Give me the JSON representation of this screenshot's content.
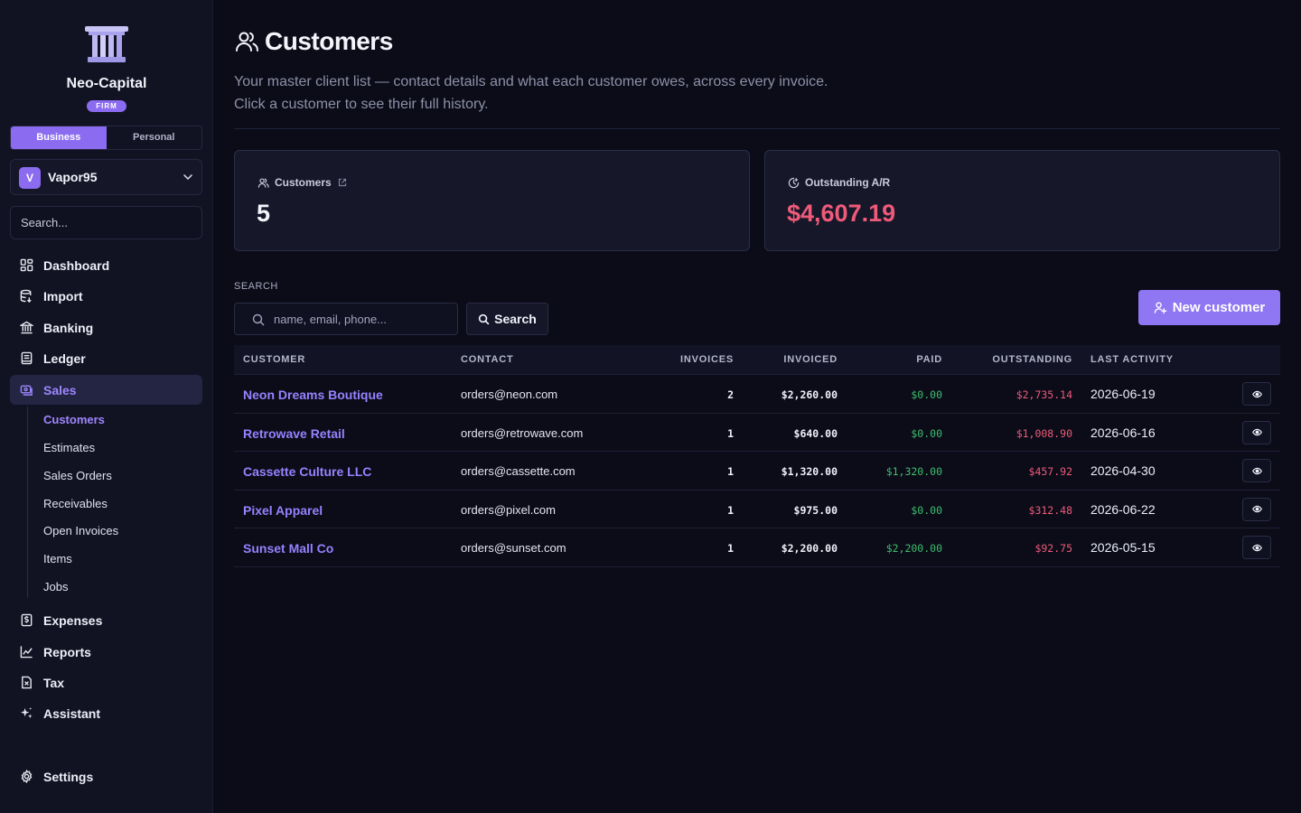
{
  "sidebar": {
    "org_name": "Neo-Capital",
    "org_badge": "FIRM",
    "modes": [
      "Business",
      "Personal"
    ],
    "active_mode": "Business",
    "workspace": {
      "initial": "V",
      "name": "Vapor95"
    },
    "search_placeholder": "Search...",
    "nav": [
      {
        "label": "Dashboard",
        "icon": "dashboard-icon"
      },
      {
        "label": "Import",
        "icon": "database-import-icon"
      },
      {
        "label": "Banking",
        "icon": "bank-icon"
      },
      {
        "label": "Ledger",
        "icon": "ledger-book-icon"
      },
      {
        "label": "Sales",
        "icon": "sales-icon",
        "active": true
      }
    ],
    "sales_sub": [
      "Customers",
      "Estimates",
      "Sales Orders",
      "Receivables",
      "Open Invoices",
      "Items",
      "Jobs"
    ],
    "nav_bottom": [
      {
        "label": "Expenses",
        "icon": "receipt-dollar-icon"
      },
      {
        "label": "Reports",
        "icon": "chart-icon"
      },
      {
        "label": "Tax",
        "icon": "tax-document-icon"
      },
      {
        "label": "Assistant",
        "icon": "sparkles-icon"
      }
    ],
    "settings_label": "Settings"
  },
  "header": {
    "title": "Customers",
    "desc_line1": "Your master client list — contact details and what each customer owes, across every invoice.",
    "desc_line2": "Click a customer to see their full history."
  },
  "cards": {
    "customers_label": "Customers",
    "customers_value": "5",
    "ar_label": "Outstanding A/R",
    "ar_value": "$4,607.19"
  },
  "search": {
    "label": "SEARCH",
    "placeholder": "name, email, phone...",
    "button": "Search"
  },
  "new_customer_button": "New customer",
  "table": {
    "headers": [
      "CUSTOMER",
      "CONTACT",
      "INVOICES",
      "INVOICED",
      "PAID",
      "OUTSTANDING",
      "LAST ACTIVITY"
    ],
    "rows": [
      {
        "name": "Neon Dreams Boutique",
        "contact": "orders@neon.com",
        "invoices": "2",
        "invoiced": "$2,260.00",
        "paid": "$0.00",
        "outstanding": "$2,735.14",
        "last": "2026-06-19"
      },
      {
        "name": "Retrowave Retail",
        "contact": "orders@retrowave.com",
        "invoices": "1",
        "invoiced": "$640.00",
        "paid": "$0.00",
        "outstanding": "$1,008.90",
        "last": "2026-06-16"
      },
      {
        "name": "Cassette Culture LLC",
        "contact": "orders@cassette.com",
        "invoices": "1",
        "invoiced": "$1,320.00",
        "paid": "$1,320.00",
        "outstanding": "$457.92",
        "last": "2026-04-30"
      },
      {
        "name": "Pixel Apparel",
        "contact": "orders@pixel.com",
        "invoices": "1",
        "invoiced": "$975.00",
        "paid": "$0.00",
        "outstanding": "$312.48",
        "last": "2026-06-22"
      },
      {
        "name": "Sunset Mall Co",
        "contact": "orders@sunset.com",
        "invoices": "1",
        "invoiced": "$2,200.00",
        "paid": "$2,200.00",
        "outstanding": "$92.75",
        "last": "2026-05-15"
      }
    ]
  },
  "colors": {
    "accent": "#8b6cf0",
    "link": "#9582ff",
    "paid": "#3fbe6e",
    "outstanding": "#ef5a7a"
  }
}
